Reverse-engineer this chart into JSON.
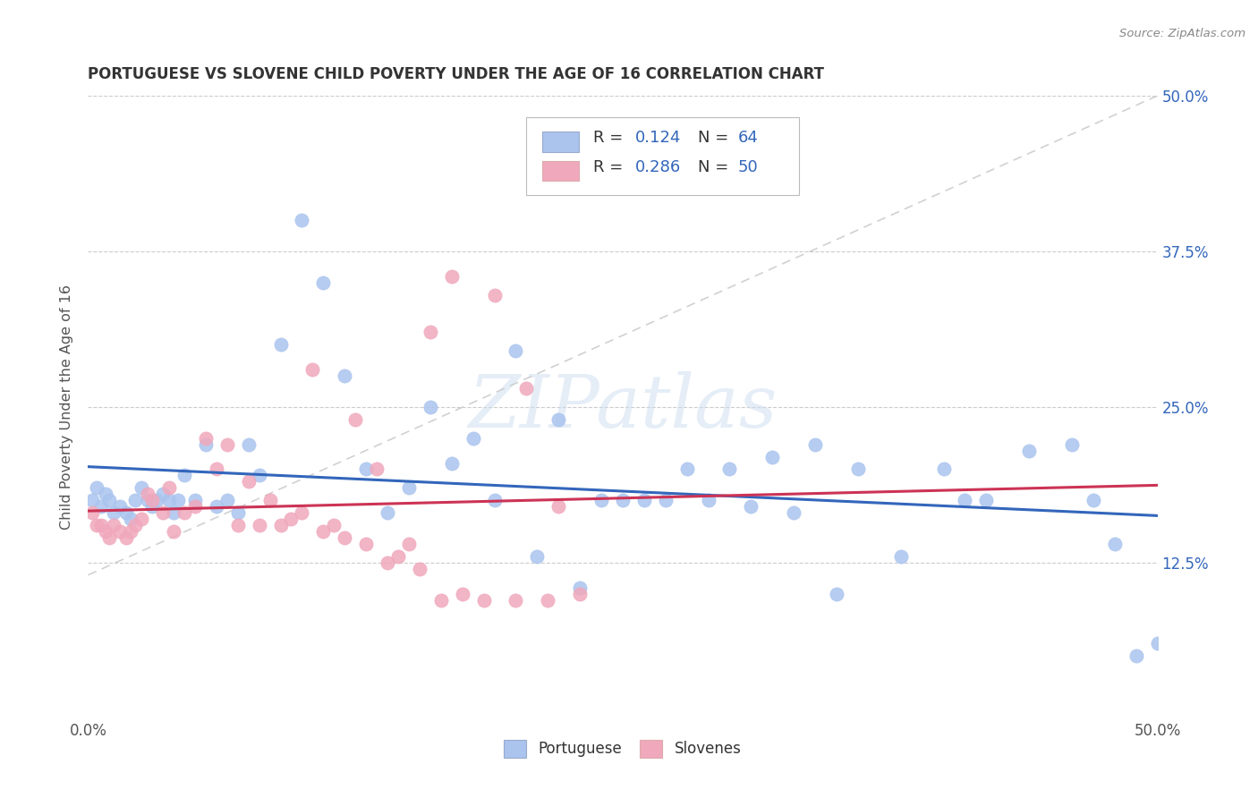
{
  "title": "PORTUGUESE VS SLOVENE CHILD POVERTY UNDER THE AGE OF 16 CORRELATION CHART",
  "source": "Source: ZipAtlas.com",
  "ylabel": "Child Poverty Under the Age of 16",
  "xlim": [
    0.0,
    0.5
  ],
  "ylim": [
    0.0,
    0.5
  ],
  "portuguese_color": "#aac4ee",
  "slovene_color": "#f0a8bc",
  "portuguese_line_color": "#3366bb",
  "slovene_line_color": "#cc3355",
  "diagonal_color": "#cccccc",
  "watermark": "ZIPatlas",
  "portuguese_x": [
    0.002,
    0.004,
    0.006,
    0.008,
    0.01,
    0.012,
    0.015,
    0.018,
    0.02,
    0.022,
    0.025,
    0.028,
    0.03,
    0.032,
    0.035,
    0.038,
    0.04,
    0.042,
    0.045,
    0.05,
    0.055,
    0.06,
    0.065,
    0.07,
    0.075,
    0.08,
    0.09,
    0.1,
    0.11,
    0.12,
    0.13,
    0.14,
    0.15,
    0.16,
    0.17,
    0.18,
    0.19,
    0.2,
    0.21,
    0.22,
    0.23,
    0.24,
    0.26,
    0.28,
    0.29,
    0.3,
    0.32,
    0.34,
    0.35,
    0.36,
    0.38,
    0.4,
    0.42,
    0.44,
    0.46,
    0.47,
    0.48,
    0.49,
    0.5,
    0.25,
    0.27,
    0.31,
    0.33,
    0.41
  ],
  "portuguese_y": [
    0.175,
    0.185,
    0.17,
    0.18,
    0.175,
    0.165,
    0.17,
    0.165,
    0.16,
    0.175,
    0.185,
    0.175,
    0.17,
    0.175,
    0.18,
    0.175,
    0.165,
    0.175,
    0.195,
    0.175,
    0.22,
    0.17,
    0.175,
    0.165,
    0.22,
    0.195,
    0.3,
    0.4,
    0.35,
    0.275,
    0.2,
    0.165,
    0.185,
    0.25,
    0.205,
    0.225,
    0.175,
    0.295,
    0.13,
    0.24,
    0.105,
    0.175,
    0.175,
    0.2,
    0.175,
    0.2,
    0.21,
    0.22,
    0.1,
    0.2,
    0.13,
    0.2,
    0.175,
    0.215,
    0.22,
    0.175,
    0.14,
    0.05,
    0.06,
    0.175,
    0.175,
    0.17,
    0.165,
    0.175
  ],
  "slovene_x": [
    0.002,
    0.004,
    0.006,
    0.008,
    0.01,
    0.012,
    0.015,
    0.018,
    0.02,
    0.022,
    0.025,
    0.028,
    0.03,
    0.035,
    0.038,
    0.04,
    0.045,
    0.05,
    0.055,
    0.06,
    0.065,
    0.07,
    0.075,
    0.08,
    0.085,
    0.09,
    0.095,
    0.1,
    0.11,
    0.12,
    0.13,
    0.14,
    0.15,
    0.165,
    0.175,
    0.185,
    0.2,
    0.215,
    0.23,
    0.105,
    0.115,
    0.125,
    0.145,
    0.16,
    0.17,
    0.19,
    0.205,
    0.22,
    0.155,
    0.135
  ],
  "slovene_y": [
    0.165,
    0.155,
    0.155,
    0.15,
    0.145,
    0.155,
    0.15,
    0.145,
    0.15,
    0.155,
    0.16,
    0.18,
    0.175,
    0.165,
    0.185,
    0.15,
    0.165,
    0.17,
    0.225,
    0.2,
    0.22,
    0.155,
    0.19,
    0.155,
    0.175,
    0.155,
    0.16,
    0.165,
    0.15,
    0.145,
    0.14,
    0.125,
    0.14,
    0.095,
    0.1,
    0.095,
    0.095,
    0.095,
    0.1,
    0.28,
    0.155,
    0.24,
    0.13,
    0.31,
    0.355,
    0.34,
    0.265,
    0.17,
    0.12,
    0.2
  ]
}
